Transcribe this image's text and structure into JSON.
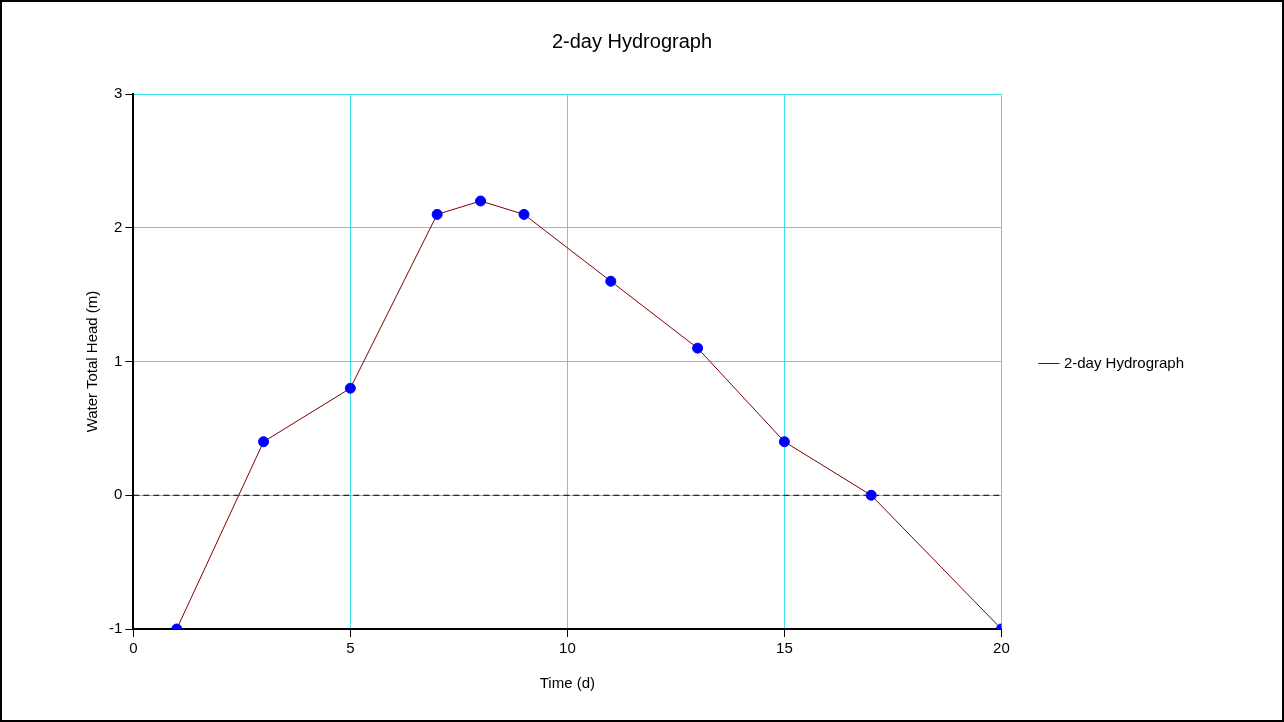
{
  "chart_data": {
    "type": "line",
    "title": "2-day Hydrograph",
    "xlabel": "Time (d)",
    "ylabel": "Water Total Head (m)",
    "x": [
      1,
      3,
      5,
      7,
      8,
      9,
      11,
      13,
      15,
      17,
      20
    ],
    "series": [
      {
        "name": "2-day Hydrograph",
        "color": "#800000",
        "colors": [
          "#0000ff",
          "#0000ff",
          "#0000ff",
          "#0000ff",
          "#0000ff",
          "#0000ff",
          "#0000ff",
          "#0000ff",
          "#0000ff",
          "#0000ff",
          "#0000ff"
        ],
        "values": [
          -1,
          0.4,
          0.8,
          2.1,
          2.2,
          2.1,
          1.6,
          1.1,
          0.4,
          0,
          -1
        ]
      }
    ],
    "xlim": [
      0,
      20
    ],
    "xticks": [
      0,
      5,
      10,
      15,
      20
    ],
    "ylim": [
      -1,
      3
    ],
    "yticks": [
      -1,
      0,
      1,
      2,
      3
    ],
    "ref_lines": [
      {
        "axis": "y",
        "value": 0,
        "color": "#000000",
        "line_style": "dashed"
      }
    ],
    "grid": true,
    "legend": "right",
    "marker": "circle",
    "line_style": "solid"
  }
}
